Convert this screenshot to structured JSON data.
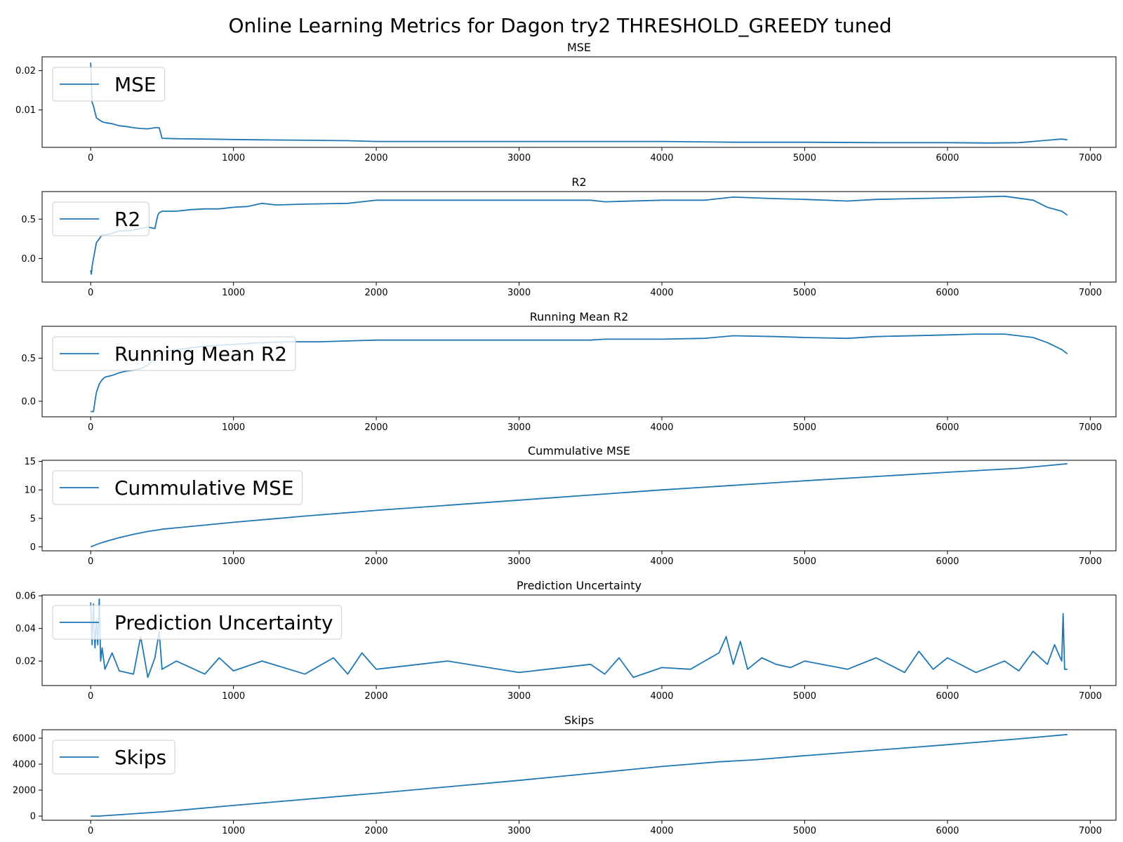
{
  "figure": {
    "title": "Online Learning Metrics for Dagon try2 THRESHOLD_GREEDY tuned",
    "line_color": "#1f77b4"
  },
  "chart_data": [
    {
      "type": "line",
      "title": "MSE",
      "legend": "MSE",
      "legend_position": "upper-left",
      "xlim": [
        -340,
        7180
      ],
      "ylim": [
        0.0005,
        0.0235
      ],
      "xticks": [
        0,
        1000,
        2000,
        3000,
        4000,
        5000,
        6000,
        7000
      ],
      "yticks": [
        0.01,
        0.02
      ],
      "ytick_labels": [
        "0.01",
        "0.02"
      ],
      "x": [
        0,
        5,
        10,
        20,
        30,
        40,
        60,
        80,
        100,
        150,
        200,
        250,
        300,
        350,
        400,
        450,
        480,
        500,
        600,
        800,
        1000,
        1200,
        1500,
        1800,
        2000,
        2500,
        3000,
        3500,
        4000,
        4500,
        5000,
        5500,
        6000,
        6300,
        6500,
        6700,
        6800,
        6840
      ],
      "y": [
        0.022,
        0.017,
        0.012,
        0.011,
        0.0095,
        0.008,
        0.0075,
        0.007,
        0.0068,
        0.0065,
        0.006,
        0.0058,
        0.0055,
        0.0053,
        0.0052,
        0.0055,
        0.0055,
        0.0028,
        0.0027,
        0.0026,
        0.0025,
        0.0024,
        0.0023,
        0.0022,
        0.002,
        0.002,
        0.002,
        0.002,
        0.002,
        0.0018,
        0.0018,
        0.0017,
        0.0017,
        0.0016,
        0.0017,
        0.0023,
        0.0026,
        0.0024
      ]
    },
    {
      "type": "line",
      "title": "R2",
      "legend": "R2",
      "legend_position": "upper-left",
      "xlim": [
        -340,
        7180
      ],
      "ylim": [
        -0.3,
        0.85
      ],
      "xticks": [
        0,
        1000,
        2000,
        3000,
        4000,
        5000,
        6000,
        7000
      ],
      "yticks": [
        0.0,
        0.5
      ],
      "ytick_labels": [
        "0.0",
        "0.5"
      ],
      "x": [
        0,
        5,
        10,
        20,
        30,
        40,
        60,
        80,
        100,
        150,
        200,
        250,
        300,
        350,
        400,
        450,
        470,
        480,
        500,
        600,
        700,
        800,
        900,
        1000,
        1100,
        1200,
        1300,
        1500,
        1800,
        2000,
        2500,
        3000,
        3500,
        3600,
        4000,
        4300,
        4500,
        4800,
        5000,
        5300,
        5500,
        6000,
        6200,
        6400,
        6600,
        6700,
        6800,
        6840
      ],
      "y": [
        -0.15,
        -0.2,
        -0.1,
        0.0,
        0.1,
        0.2,
        0.25,
        0.3,
        0.3,
        0.32,
        0.35,
        0.35,
        0.36,
        0.38,
        0.4,
        0.38,
        0.55,
        0.58,
        0.6,
        0.6,
        0.62,
        0.63,
        0.63,
        0.65,
        0.66,
        0.7,
        0.68,
        0.69,
        0.7,
        0.74,
        0.74,
        0.74,
        0.74,
        0.72,
        0.74,
        0.74,
        0.78,
        0.76,
        0.75,
        0.73,
        0.75,
        0.77,
        0.78,
        0.79,
        0.74,
        0.65,
        0.6,
        0.55
      ]
    },
    {
      "type": "line",
      "title": "Running Mean R2",
      "legend": "Running Mean R2",
      "legend_position": "upper-left",
      "xlim": [
        -340,
        7180
      ],
      "ylim": [
        -0.18,
        0.87
      ],
      "xticks": [
        0,
        1000,
        2000,
        3000,
        4000,
        5000,
        6000,
        7000
      ],
      "yticks": [
        0.0,
        0.5
      ],
      "ytick_labels": [
        "0.0",
        "0.5"
      ],
      "x": [
        0,
        20,
        30,
        40,
        60,
        80,
        100,
        150,
        200,
        250,
        300,
        350,
        400,
        450,
        480,
        500,
        600,
        700,
        800,
        900,
        1000,
        1200,
        1400,
        1600,
        1800,
        2000,
        2500,
        3000,
        3500,
        3600,
        4000,
        4300,
        4500,
        4800,
        5000,
        5300,
        5500,
        6000,
        6200,
        6400,
        6600,
        6700,
        6800,
        6840
      ],
      "y": [
        -0.12,
        -0.12,
        0.0,
        0.1,
        0.2,
        0.25,
        0.28,
        0.3,
        0.33,
        0.35,
        0.36,
        0.38,
        0.42,
        0.5,
        0.55,
        0.57,
        0.6,
        0.62,
        0.64,
        0.65,
        0.66,
        0.68,
        0.69,
        0.69,
        0.7,
        0.71,
        0.71,
        0.71,
        0.71,
        0.72,
        0.72,
        0.73,
        0.76,
        0.75,
        0.74,
        0.73,
        0.75,
        0.77,
        0.78,
        0.78,
        0.74,
        0.68,
        0.6,
        0.55
      ]
    },
    {
      "type": "line",
      "title": "Cummulative MSE",
      "legend": "Cummulative MSE",
      "legend_position": "upper-left",
      "xlim": [
        -340,
        7180
      ],
      "ylim": [
        -0.7,
        15.2
      ],
      "xticks": [
        0,
        1000,
        2000,
        3000,
        4000,
        5000,
        6000,
        7000
      ],
      "yticks": [
        0,
        5,
        10,
        15
      ],
      "ytick_labels": [
        "0",
        "5",
        "10",
        "15"
      ],
      "x": [
        0,
        50,
        100,
        200,
        300,
        400,
        480,
        500,
        1000,
        1500,
        2000,
        3000,
        4000,
        5000,
        6000,
        6500,
        6840
      ],
      "y": [
        0,
        0.5,
        0.9,
        1.6,
        2.2,
        2.7,
        3.0,
        3.1,
        4.3,
        5.4,
        6.4,
        8.2,
        10.0,
        11.6,
        13.1,
        13.8,
        14.6
      ]
    },
    {
      "type": "line",
      "title": "Prediction Uncertainty",
      "legend": "Prediction Uncertainty",
      "legend_position": "upper-left",
      "xlim": [
        -340,
        7180
      ],
      "ylim": [
        0.005,
        0.0605
      ],
      "xticks": [
        0,
        1000,
        2000,
        3000,
        4000,
        5000,
        6000,
        7000
      ],
      "yticks": [
        0.02,
        0.04,
        0.06
      ],
      "ytick_labels": [
        "0.02",
        "0.04",
        "0.06"
      ],
      "x": [
        0,
        10,
        20,
        30,
        40,
        50,
        60,
        70,
        80,
        100,
        150,
        200,
        300,
        350,
        400,
        450,
        480,
        500,
        600,
        800,
        900,
        1000,
        1200,
        1500,
        1700,
        1800,
        1900,
        2000,
        2500,
        3000,
        3500,
        3600,
        3700,
        3800,
        4000,
        4200,
        4300,
        4400,
        4450,
        4500,
        4550,
        4600,
        4700,
        4800,
        4900,
        5000,
        5300,
        5500,
        5700,
        5800,
        5900,
        6000,
        6200,
        6400,
        6500,
        6600,
        6700,
        6750,
        6800,
        6810,
        6820,
        6840
      ],
      "y": [
        0.056,
        0.03,
        0.055,
        0.028,
        0.045,
        0.03,
        0.058,
        0.02,
        0.028,
        0.015,
        0.025,
        0.014,
        0.012,
        0.035,
        0.01,
        0.022,
        0.038,
        0.015,
        0.02,
        0.012,
        0.022,
        0.014,
        0.02,
        0.012,
        0.022,
        0.012,
        0.025,
        0.015,
        0.02,
        0.013,
        0.018,
        0.012,
        0.022,
        0.01,
        0.016,
        0.015,
        0.02,
        0.025,
        0.035,
        0.018,
        0.032,
        0.015,
        0.022,
        0.018,
        0.016,
        0.02,
        0.015,
        0.022,
        0.013,
        0.026,
        0.015,
        0.022,
        0.013,
        0.02,
        0.014,
        0.026,
        0.018,
        0.03,
        0.02,
        0.049,
        0.015,
        0.015
      ]
    },
    {
      "type": "line",
      "title": "Skips",
      "legend": "Skips",
      "legend_position": "upper-left",
      "xlim": [
        -340,
        7180
      ],
      "ylim": [
        -320,
        6650
      ],
      "xticks": [
        0,
        1000,
        2000,
        3000,
        4000,
        5000,
        6000,
        7000
      ],
      "yticks": [
        0,
        2000,
        4000,
        6000
      ],
      "ytick_labels": [
        "0",
        "2000",
        "4000",
        "6000"
      ],
      "x": [
        0,
        50,
        100,
        500,
        1000,
        2000,
        3000,
        4000,
        4400,
        4650,
        5000,
        6000,
        6500,
        6840
      ],
      "y": [
        0,
        0,
        30,
        330,
        820,
        1760,
        2750,
        3820,
        4180,
        4330,
        4650,
        5500,
        5950,
        6280
      ]
    }
  ]
}
